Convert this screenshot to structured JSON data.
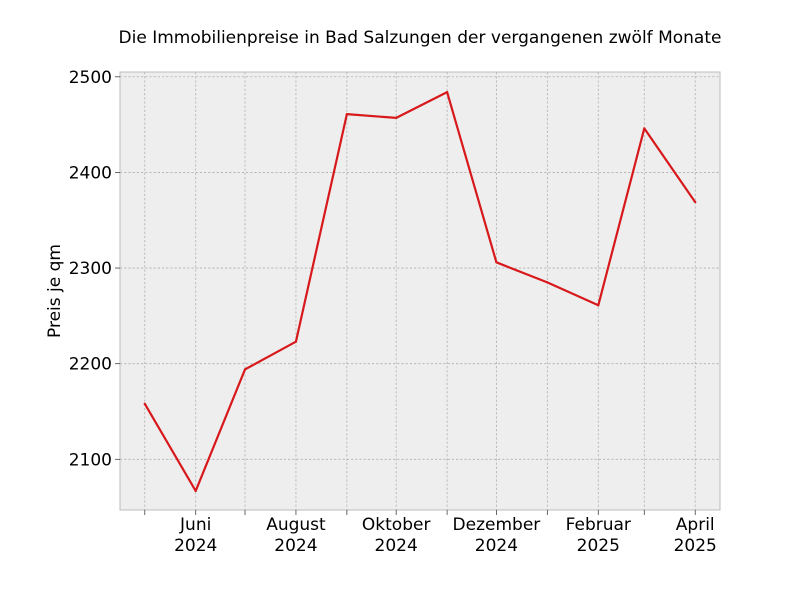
{
  "chart_data": {
    "type": "line",
    "title": "Die Immobilienpreise in Bad Salzungen der vergangenen zwölf Monate",
    "xlabel": "",
    "ylabel": "Preis je qm",
    "x": [
      "2024-05",
      "2024-06",
      "2024-07",
      "2024-08",
      "2024-09",
      "2024-10",
      "2024-11",
      "2024-12",
      "2025-01",
      "2025-02",
      "2025-03",
      "2025-04"
    ],
    "x_ticks": [
      {
        "x": "2024-05",
        "line1": "",
        "line2": ""
      },
      {
        "x": "2024-06",
        "line1": "Juni",
        "line2": "2024"
      },
      {
        "x": "2024-07",
        "line1": "",
        "line2": ""
      },
      {
        "x": "2024-08",
        "line1": "August",
        "line2": "2024"
      },
      {
        "x": "2024-09",
        "line1": "",
        "line2": ""
      },
      {
        "x": "2024-10",
        "line1": "Oktober",
        "line2": "2024"
      },
      {
        "x": "2024-11",
        "line1": "",
        "line2": ""
      },
      {
        "x": "2024-12",
        "line1": "Dezember",
        "line2": "2024"
      },
      {
        "x": "2025-01",
        "line1": "",
        "line2": ""
      },
      {
        "x": "2025-02",
        "line1": "Februar",
        "line2": "2025"
      },
      {
        "x": "2025-03",
        "line1": "",
        "line2": ""
      },
      {
        "x": "2025-04",
        "line1": "April",
        "line2": "2025"
      }
    ],
    "series": [
      {
        "color": "#d7191c",
        "values": [
          2158,
          2067,
          2194,
          2223,
          2461,
          2457,
          2484,
          2306,
          2285,
          2261,
          2446,
          2369
        ]
      }
    ],
    "ylim": [
      2047,
      2505
    ],
    "yticks": [
      2100,
      2200,
      2300,
      2400,
      2500
    ],
    "grid": true,
    "colors": {
      "plot_background": "#eeeeee",
      "grid": "#b0b0b0",
      "frame": "#bcbcbc"
    }
  }
}
